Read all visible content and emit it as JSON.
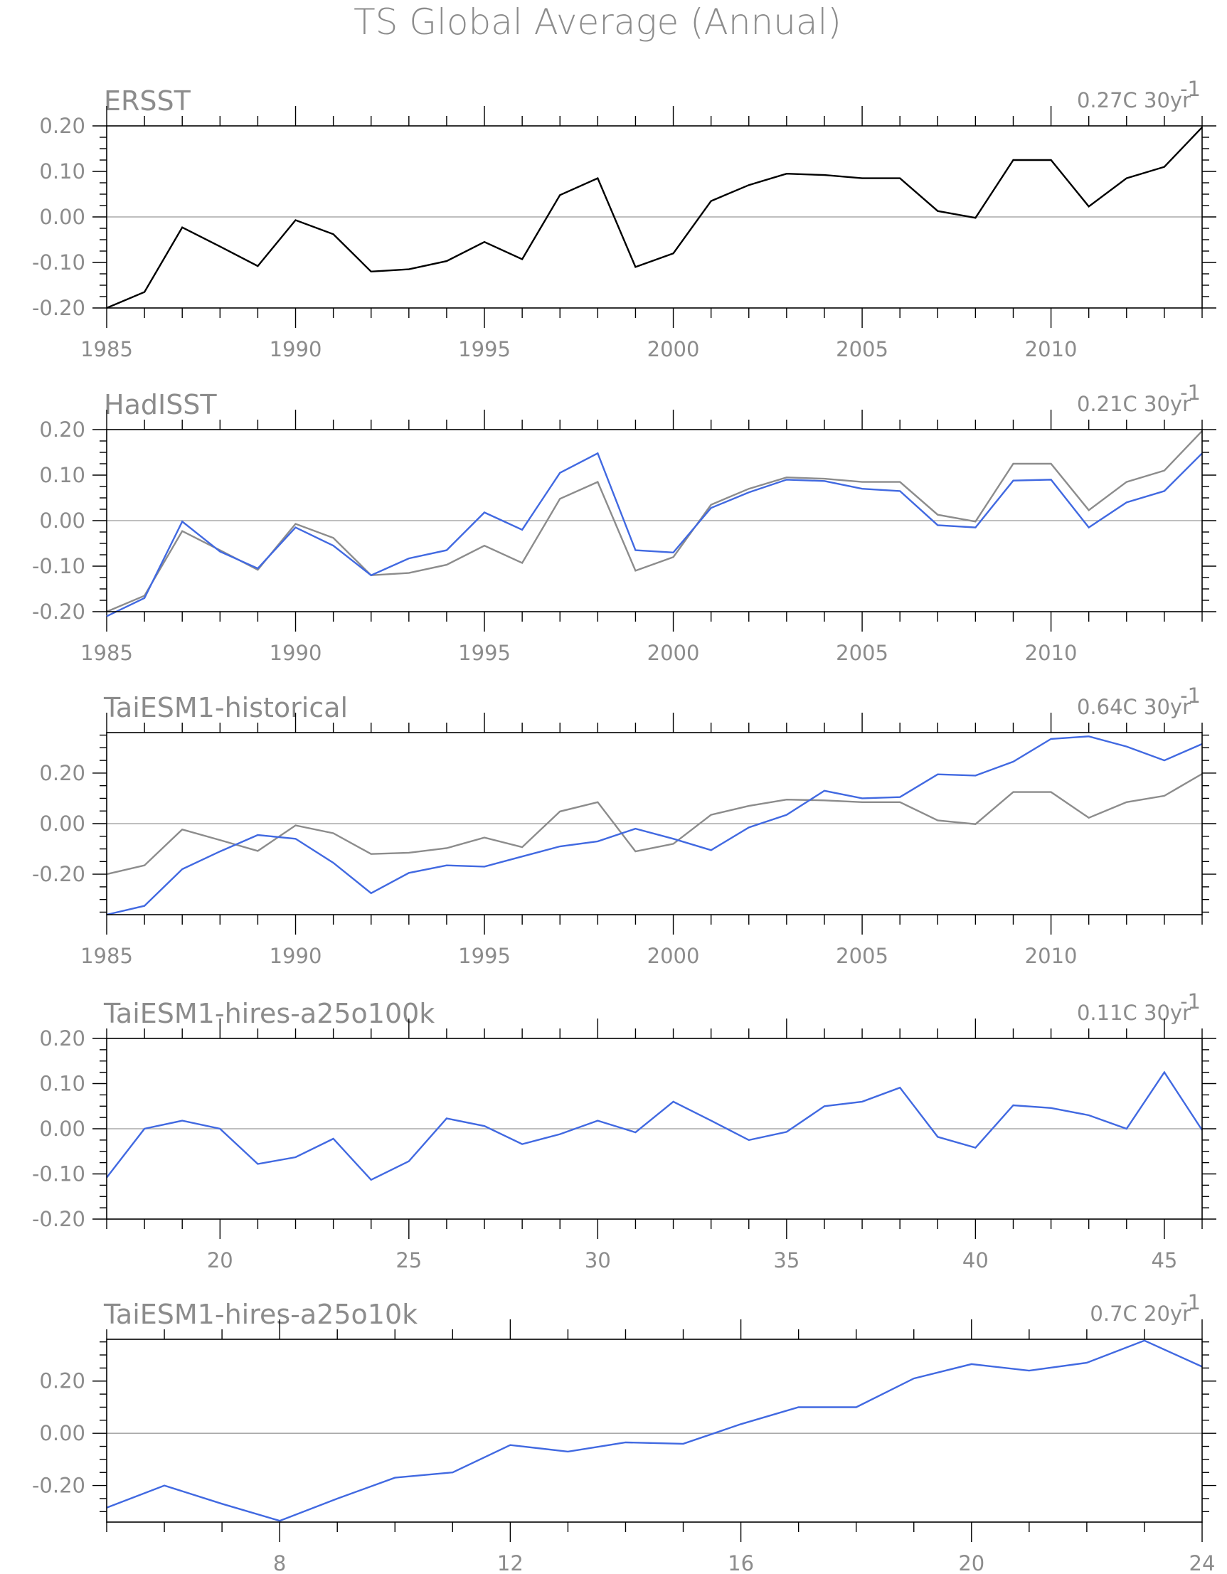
{
  "title": "TS Global Average (Annual)",
  "colors": {
    "model": "#4169e1",
    "obs": "#8c8c8c",
    "black": "#000000"
  },
  "chart_data": [
    {
      "type": "line",
      "title": "ERSST",
      "trend": "0.27C 30yr",
      "trend_sup": "-1",
      "xlim": [
        1985,
        2014
      ],
      "ylim": [
        -0.2,
        0.2
      ],
      "yticks": [
        -0.2,
        -0.1,
        0.0,
        0.1,
        0.2
      ],
      "ytick_labels": [
        "-0.20",
        "-0.10",
        "0.00",
        "0.10",
        "0.20"
      ],
      "xticks": [
        1985,
        1990,
        1995,
        2000,
        2005,
        2010
      ],
      "xtick_labels": [
        "1985",
        "1990",
        "1995",
        "2000",
        "2005",
        "2010"
      ],
      "x": [
        1985,
        1986,
        1987,
        1988,
        1989,
        1990,
        1991,
        1992,
        1993,
        1994,
        1995,
        1996,
        1997,
        1998,
        1999,
        2000,
        2001,
        2002,
        2003,
        2004,
        2005,
        2006,
        2007,
        2008,
        2009,
        2010,
        2011,
        2012,
        2013,
        2014
      ],
      "series": [
        {
          "color": "#000000",
          "values": [
            -0.2,
            -0.165,
            -0.023,
            -0.065,
            -0.108,
            -0.007,
            -0.038,
            -0.12,
            -0.115,
            -0.097,
            -0.055,
            -0.093,
            0.048,
            0.085,
            -0.11,
            -0.08,
            0.035,
            0.07,
            0.095,
            0.092,
            0.085,
            0.085,
            0.013,
            -0.002,
            0.125,
            0.125,
            0.023,
            0.085,
            0.11,
            0.197
          ]
        }
      ]
    },
    {
      "type": "line",
      "title": "HadISST",
      "trend": "0.21C 30yr",
      "trend_sup": "-1",
      "xlim": [
        1985,
        2014
      ],
      "ylim": [
        -0.2,
        0.2
      ],
      "yticks": [
        -0.2,
        -0.1,
        0.0,
        0.1,
        0.2
      ],
      "ytick_labels": [
        "-0.20",
        "-0.10",
        "0.00",
        "0.10",
        "0.20"
      ],
      "xticks": [
        1985,
        1990,
        1995,
        2000,
        2005,
        2010
      ],
      "xtick_labels": [
        "1985",
        "1990",
        "1995",
        "2000",
        "2005",
        "2010"
      ],
      "x": [
        1985,
        1986,
        1987,
        1988,
        1989,
        1990,
        1991,
        1992,
        1993,
        1994,
        1995,
        1996,
        1997,
        1998,
        1999,
        2000,
        2001,
        2002,
        2003,
        2004,
        2005,
        2006,
        2007,
        2008,
        2009,
        2010,
        2011,
        2012,
        2013,
        2014
      ],
      "series": [
        {
          "color": "#8c8c8c",
          "values": [
            -0.2,
            -0.165,
            -0.023,
            -0.065,
            -0.108,
            -0.007,
            -0.038,
            -0.12,
            -0.115,
            -0.097,
            -0.055,
            -0.093,
            0.048,
            0.085,
            -0.11,
            -0.08,
            0.035,
            0.07,
            0.095,
            0.092,
            0.085,
            0.085,
            0.013,
            -0.002,
            0.125,
            0.125,
            0.023,
            0.085,
            0.11,
            0.197
          ]
        },
        {
          "color": "#4169e1",
          "values": [
            -0.21,
            -0.17,
            -0.002,
            -0.068,
            -0.105,
            -0.015,
            -0.055,
            -0.12,
            -0.083,
            -0.065,
            0.018,
            -0.02,
            0.105,
            0.148,
            -0.065,
            -0.07,
            0.028,
            0.062,
            0.09,
            0.087,
            0.07,
            0.065,
            -0.01,
            -0.015,
            0.088,
            0.09,
            -0.015,
            0.04,
            0.065,
            0.148
          ]
        }
      ]
    },
    {
      "type": "line",
      "title": "TaiESM1-historical",
      "trend": "0.64C 30yr",
      "trend_sup": "-1",
      "xlim": [
        1985,
        2014
      ],
      "ylim": [
        -0.36,
        0.36
      ],
      "yticks": [
        -0.2,
        0.0,
        0.2
      ],
      "ytick_labels": [
        "-0.20",
        "0.00",
        "0.20"
      ],
      "minor_step": 0.05,
      "xticks": [
        1985,
        1990,
        1995,
        2000,
        2005,
        2010
      ],
      "xtick_labels": [
        "1985",
        "1990",
        "1995",
        "2000",
        "2005",
        "2010"
      ],
      "x": [
        1985,
        1986,
        1987,
        1988,
        1989,
        1990,
        1991,
        1992,
        1993,
        1994,
        1995,
        1996,
        1997,
        1998,
        1999,
        2000,
        2001,
        2002,
        2003,
        2004,
        2005,
        2006,
        2007,
        2008,
        2009,
        2010,
        2011,
        2012,
        2013,
        2014
      ],
      "series": [
        {
          "color": "#8c8c8c",
          "values": [
            -0.2,
            -0.165,
            -0.023,
            -0.065,
            -0.108,
            -0.007,
            -0.038,
            -0.12,
            -0.115,
            -0.097,
            -0.055,
            -0.093,
            0.048,
            0.085,
            -0.11,
            -0.08,
            0.035,
            0.07,
            0.095,
            0.092,
            0.085,
            0.085,
            0.013,
            -0.002,
            0.125,
            0.125,
            0.023,
            0.085,
            0.11,
            0.197
          ]
        },
        {
          "color": "#4169e1",
          "values": [
            -0.36,
            -0.325,
            -0.18,
            -0.11,
            -0.045,
            -0.06,
            -0.155,
            -0.275,
            -0.195,
            -0.165,
            -0.17,
            -0.13,
            -0.09,
            -0.07,
            -0.02,
            -0.06,
            -0.105,
            -0.015,
            0.035,
            0.13,
            0.1,
            0.105,
            0.195,
            0.19,
            0.245,
            0.335,
            0.345,
            0.305,
            0.25,
            0.315
          ]
        }
      ]
    },
    {
      "type": "line",
      "title": "TaiESM1-hires-a25o100k",
      "trend": "0.11C 30yr",
      "trend_sup": "-1",
      "xlim": [
        17,
        46
      ],
      "ylim": [
        -0.2,
        0.2
      ],
      "yticks": [
        -0.2,
        -0.1,
        0.0,
        0.1,
        0.2
      ],
      "ytick_labels": [
        "-0.20",
        "-0.10",
        "0.00",
        "0.10",
        "0.20"
      ],
      "xticks": [
        20,
        25,
        30,
        35,
        40,
        45
      ],
      "xtick_labels": [
        "20",
        "25",
        "30",
        "35",
        "40",
        "45"
      ],
      "x": [
        17,
        18,
        19,
        20,
        21,
        22,
        23,
        24,
        25,
        26,
        27,
        28,
        29,
        30,
        31,
        32,
        33,
        34,
        35,
        36,
        37,
        38,
        39,
        40,
        41,
        42,
        43,
        44,
        45,
        46
      ],
      "series": [
        {
          "color": "#4169e1",
          "values": [
            -0.108,
            0.0,
            0.018,
            0.0,
            -0.078,
            -0.063,
            -0.022,
            -0.113,
            -0.072,
            0.023,
            0.006,
            -0.034,
            -0.012,
            0.018,
            -0.008,
            0.06,
            0.018,
            -0.025,
            -0.007,
            0.05,
            0.06,
            0.091,
            -0.018,
            -0.042,
            0.052,
            0.046,
            0.03,
            0.0,
            0.125,
            -0.003
          ]
        }
      ]
    },
    {
      "type": "line",
      "title": "TaiESM1-hires-a25o10k",
      "trend": "0.7C 20yr",
      "trend_sup": "-1",
      "xlim": [
        5,
        24
      ],
      "ylim": [
        -0.34,
        0.36
      ],
      "yticks": [
        -0.2,
        0.0,
        0.2
      ],
      "ytick_labels": [
        "-0.20",
        "0.00",
        "0.20"
      ],
      "minor_step": 0.05,
      "xticks": [
        8,
        12,
        16,
        20,
        24
      ],
      "xtick_labels": [
        "8",
        "12",
        "16",
        "20",
        "24"
      ],
      "x": [
        5,
        6,
        7,
        8,
        9,
        10,
        11,
        12,
        13,
        14,
        15,
        16,
        17,
        18,
        19,
        20,
        21,
        22,
        23,
        24
      ],
      "series": [
        {
          "color": "#4169e1",
          "values": [
            -0.285,
            -0.2,
            -0.27,
            -0.335,
            -0.25,
            -0.17,
            -0.15,
            -0.045,
            -0.07,
            -0.035,
            -0.04,
            0.035,
            0.1,
            0.1,
            0.21,
            0.265,
            0.24,
            0.27,
            0.355,
            0.255
          ]
        }
      ]
    }
  ]
}
